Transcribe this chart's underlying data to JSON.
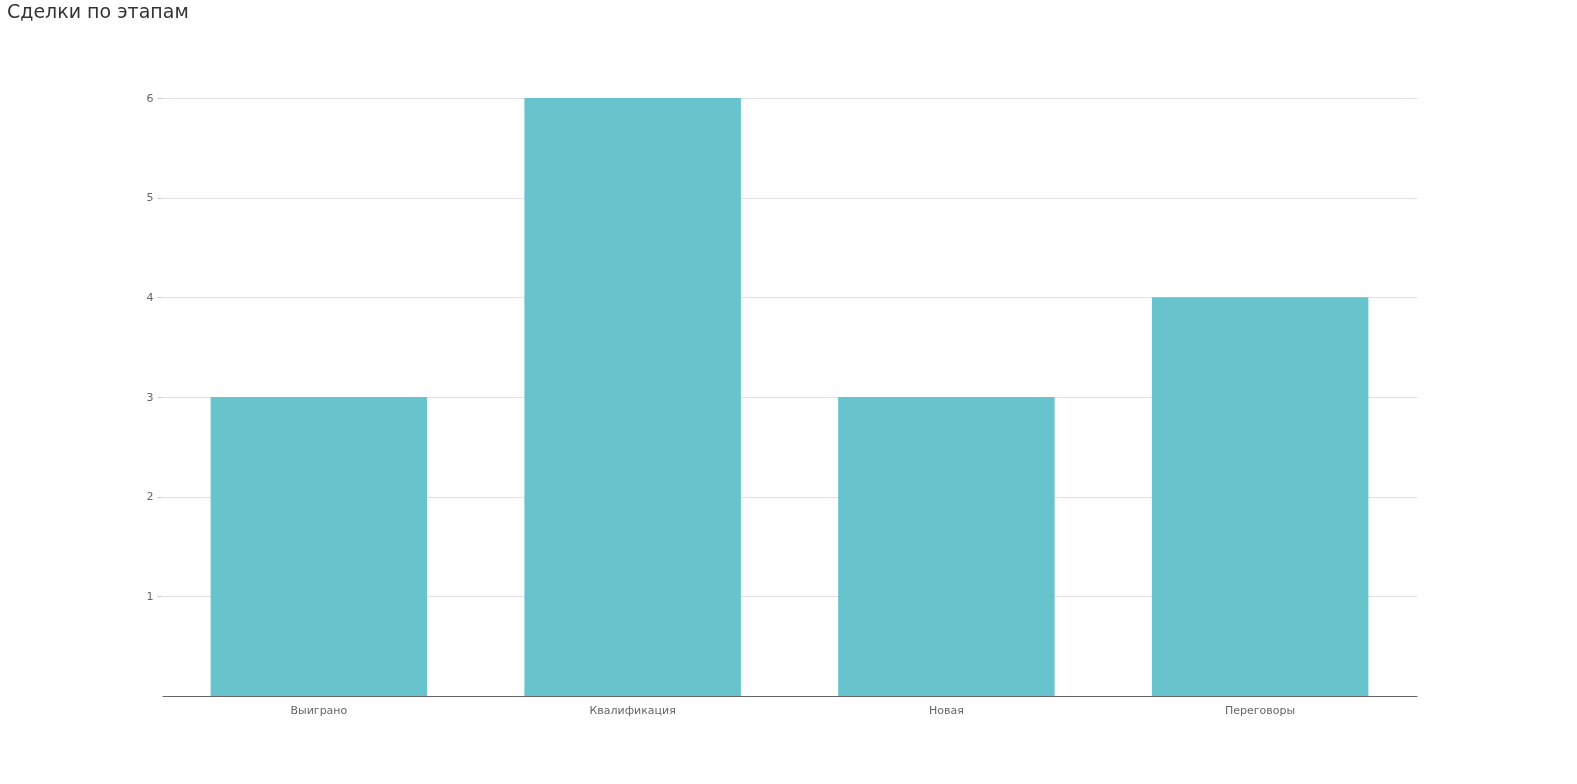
{
  "chart_data": {
    "type": "bar",
    "title": "Сделки по этапам",
    "categories": [
      "Выиграно",
      "Квалификация",
      "Новая",
      "Переговоры"
    ],
    "values": [
      3,
      6,
      3,
      4
    ],
    "color": "#67c4cc",
    "ylim": [
      0,
      6
    ],
    "yticks": [
      1,
      2,
      3,
      4,
      5,
      6
    ],
    "grid": "y"
  }
}
